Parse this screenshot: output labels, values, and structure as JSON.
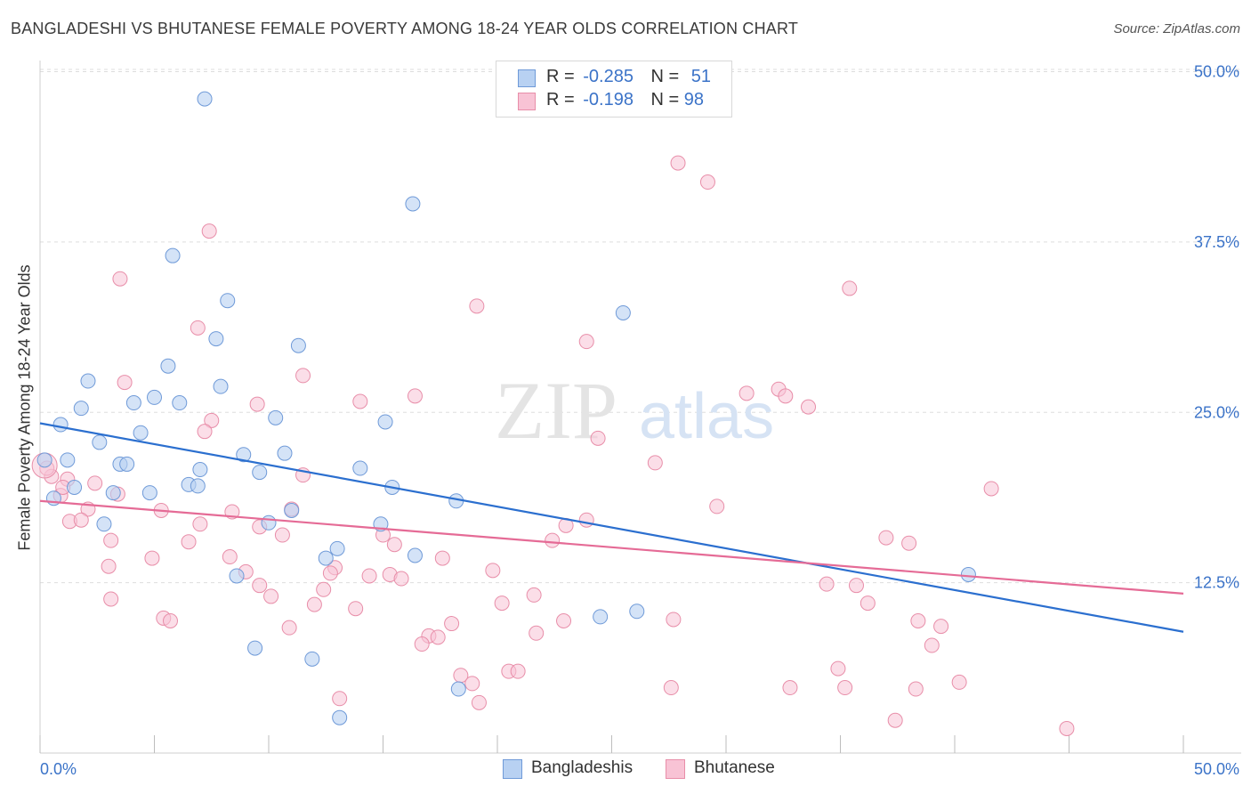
{
  "title": "BANGLADESHI VS BHUTANESE FEMALE POVERTY AMONG 18-24 YEAR OLDS CORRELATION CHART",
  "source": "Source: ZipAtlas.com",
  "watermark": {
    "zip": "ZIP",
    "atlas": "atlas"
  },
  "legend_box": {
    "rows": [
      {
        "r_label": "R =",
        "r_value": "-0.285",
        "n_label": "N =",
        "n_value": "51"
      },
      {
        "r_label": "R =",
        "r_value": "-0.198",
        "n_label": "N =",
        "n_value": "98"
      }
    ]
  },
  "bottom_legend": [
    "Bangladeshis",
    "Bhutanese"
  ],
  "colors": {
    "blue_fill": "#b8d1f2",
    "blue_stroke": "#6f9ad8",
    "blue_line": "#2b6fcf",
    "pink_fill": "#f8c3d5",
    "pink_stroke": "#e88ea9",
    "pink_line": "#e56b96",
    "axis_text": "#3b73c8",
    "grid": "#dddddd"
  },
  "chart_data": {
    "type": "scatter",
    "title": "BANGLADESHI VS BHUTANESE FEMALE POVERTY AMONG 18-24 YEAR OLDS CORRELATION CHART",
    "xlabel": "",
    "ylabel": "Female Poverty Among 18-24 Year Olds",
    "xlim": [
      0,
      50
    ],
    "ylim": [
      0,
      52
    ],
    "x_tick_labels": [
      "0.0%",
      "50.0%"
    ],
    "y_tick_labels": [
      "12.5%",
      "25.0%",
      "37.5%",
      "50.0%"
    ],
    "y_ticks": [
      12.5,
      25.0,
      37.5,
      50.0
    ],
    "x_minor_ticks": [
      0,
      5,
      10,
      15,
      20,
      25,
      30,
      35,
      40,
      45,
      50
    ],
    "grid": true,
    "legend_position": "top-center",
    "series": [
      {
        "name": "Bangladeshis",
        "r": -0.285,
        "n": 51,
        "trend": {
          "x": [
            0,
            50
          ],
          "y": [
            24.2,
            8.9
          ]
        },
        "points": [
          [
            7.2,
            48.0
          ],
          [
            16.3,
            40.3
          ],
          [
            5.8,
            36.5
          ],
          [
            8.2,
            33.2
          ],
          [
            25.5,
            32.3
          ],
          [
            7.7,
            30.4
          ],
          [
            11.3,
            29.9
          ],
          [
            5.6,
            28.4
          ],
          [
            2.1,
            27.3
          ],
          [
            7.9,
            26.9
          ],
          [
            5.0,
            26.1
          ],
          [
            4.1,
            25.7
          ],
          [
            6.1,
            25.7
          ],
          [
            1.8,
            25.3
          ],
          [
            10.3,
            24.6
          ],
          [
            15.1,
            24.3
          ],
          [
            0.9,
            24.1
          ],
          [
            4.4,
            23.5
          ],
          [
            2.6,
            22.8
          ],
          [
            8.9,
            21.9
          ],
          [
            10.7,
            22.0
          ],
          [
            1.2,
            21.5
          ],
          [
            3.5,
            21.2
          ],
          [
            3.8,
            21.2
          ],
          [
            7.0,
            20.8
          ],
          [
            14.0,
            20.9
          ],
          [
            9.6,
            20.6
          ],
          [
            6.5,
            19.7
          ],
          [
            6.9,
            19.6
          ],
          [
            1.5,
            19.5
          ],
          [
            15.4,
            19.5
          ],
          [
            3.2,
            19.1
          ],
          [
            4.8,
            19.1
          ],
          [
            0.6,
            18.7
          ],
          [
            18.2,
            18.5
          ],
          [
            11.0,
            17.8
          ],
          [
            2.8,
            16.8
          ],
          [
            10.0,
            16.9
          ],
          [
            14.9,
            16.8
          ],
          [
            13.0,
            15.0
          ],
          [
            12.5,
            14.3
          ],
          [
            16.4,
            14.5
          ],
          [
            8.6,
            13.0
          ],
          [
            40.6,
            13.1
          ],
          [
            24.5,
            10.0
          ],
          [
            26.1,
            10.4
          ],
          [
            9.4,
            7.7
          ],
          [
            11.9,
            6.9
          ],
          [
            18.3,
            4.7
          ],
          [
            13.1,
            2.6
          ],
          [
            0.2,
            21.5
          ]
        ]
      },
      {
        "name": "Bhutanese",
        "r": -0.198,
        "n": 98,
        "trend": {
          "x": [
            0,
            50
          ],
          "y": [
            18.5,
            11.7
          ]
        },
        "points": [
          [
            27.9,
            43.3
          ],
          [
            29.2,
            41.9
          ],
          [
            7.4,
            38.3
          ],
          [
            3.5,
            34.8
          ],
          [
            35.4,
            34.1
          ],
          [
            19.1,
            32.8
          ],
          [
            6.9,
            31.2
          ],
          [
            23.9,
            30.2
          ],
          [
            11.5,
            27.7
          ],
          [
            3.7,
            27.2
          ],
          [
            30.9,
            26.4
          ],
          [
            32.3,
            26.7
          ],
          [
            32.6,
            26.2
          ],
          [
            16.4,
            26.2
          ],
          [
            14.0,
            25.8
          ],
          [
            9.5,
            25.6
          ],
          [
            33.6,
            25.4
          ],
          [
            7.5,
            24.4
          ],
          [
            7.2,
            23.6
          ],
          [
            24.4,
            23.1
          ],
          [
            26.9,
            21.3
          ],
          [
            11.5,
            20.4
          ],
          [
            1.2,
            20.1
          ],
          [
            41.6,
            19.4
          ],
          [
            0.5,
            20.3
          ],
          [
            2.4,
            19.8
          ],
          [
            3.4,
            19.0
          ],
          [
            0.9,
            18.9
          ],
          [
            2.1,
            17.9
          ],
          [
            5.3,
            17.8
          ],
          [
            8.4,
            17.7
          ],
          [
            29.6,
            18.1
          ],
          [
            11.0,
            17.9
          ],
          [
            1.3,
            17.0
          ],
          [
            1.8,
            17.1
          ],
          [
            7.0,
            16.8
          ],
          [
            9.6,
            16.6
          ],
          [
            23.0,
            16.7
          ],
          [
            23.9,
            17.1
          ],
          [
            15.0,
            16.0
          ],
          [
            10.6,
            16.0
          ],
          [
            3.1,
            15.6
          ],
          [
            6.5,
            15.5
          ],
          [
            22.4,
            15.6
          ],
          [
            37.0,
            15.8
          ],
          [
            38.0,
            15.4
          ],
          [
            15.5,
            15.3
          ],
          [
            4.9,
            14.3
          ],
          [
            8.3,
            14.4
          ],
          [
            17.6,
            14.3
          ],
          [
            3.0,
            13.7
          ],
          [
            12.9,
            13.6
          ],
          [
            12.7,
            13.2
          ],
          [
            9.0,
            13.3
          ],
          [
            14.4,
            13.0
          ],
          [
            15.3,
            13.1
          ],
          [
            19.8,
            13.4
          ],
          [
            9.6,
            12.3
          ],
          [
            15.8,
            12.8
          ],
          [
            10.1,
            11.5
          ],
          [
            12.4,
            12.0
          ],
          [
            21.6,
            11.6
          ],
          [
            34.4,
            12.4
          ],
          [
            35.7,
            12.3
          ],
          [
            3.1,
            11.3
          ],
          [
            12.0,
            10.9
          ],
          [
            20.2,
            11.0
          ],
          [
            36.2,
            11.0
          ],
          [
            13.8,
            10.6
          ],
          [
            5.4,
            9.9
          ],
          [
            5.7,
            9.7
          ],
          [
            22.9,
            9.7
          ],
          [
            27.7,
            9.8
          ],
          [
            18.0,
            9.5
          ],
          [
            38.4,
            9.7
          ],
          [
            39.4,
            9.3
          ],
          [
            10.9,
            9.2
          ],
          [
            21.7,
            8.8
          ],
          [
            17.0,
            8.6
          ],
          [
            17.4,
            8.5
          ],
          [
            16.7,
            8.0
          ],
          [
            39.0,
            7.9
          ],
          [
            34.9,
            6.2
          ],
          [
            20.5,
            6.0
          ],
          [
            20.9,
            6.0
          ],
          [
            18.4,
            5.7
          ],
          [
            18.9,
            5.1
          ],
          [
            40.2,
            5.2
          ],
          [
            27.6,
            4.8
          ],
          [
            32.8,
            4.8
          ],
          [
            35.2,
            4.8
          ],
          [
            38.3,
            4.7
          ],
          [
            13.1,
            4.0
          ],
          [
            19.2,
            3.7
          ],
          [
            37.4,
            2.4
          ],
          [
            44.9,
            1.8
          ],
          [
            0.3,
            20.9
          ],
          [
            1.0,
            19.5
          ]
        ]
      }
    ]
  }
}
